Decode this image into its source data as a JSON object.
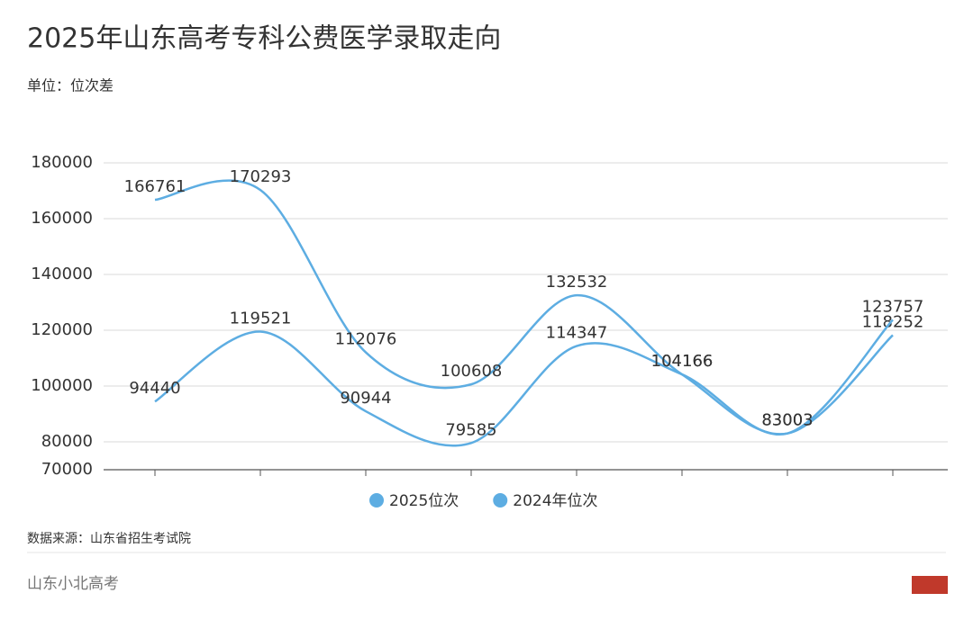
{
  "chart_data": {
    "type": "line",
    "title": "2025年山东高考专科公费医学录取走向",
    "subtitle": "单位：位次差",
    "source": "数据来源：山东省招生考试院",
    "footer": "山东小北高考",
    "categories": [
      null,
      null,
      null,
      null,
      null,
      null,
      null,
      null
    ],
    "series": [
      {
        "name": "2025位次",
        "color": "#5dade2",
        "values": [
          166761,
          170293,
          112076,
          100608,
          132532,
          104166,
          83003,
          118252
        ]
      },
      {
        "name": "2024年位次",
        "color": "#5dade2",
        "values": [
          94440,
          119521,
          90944,
          79585,
          114347,
          104166,
          83003,
          123757
        ]
      }
    ],
    "ylim": [
      70000,
      180000
    ],
    "yticks": [
      70000,
      80000,
      100000,
      120000,
      140000,
      160000,
      180000
    ],
    "grid": true,
    "legend": "bottom"
  }
}
